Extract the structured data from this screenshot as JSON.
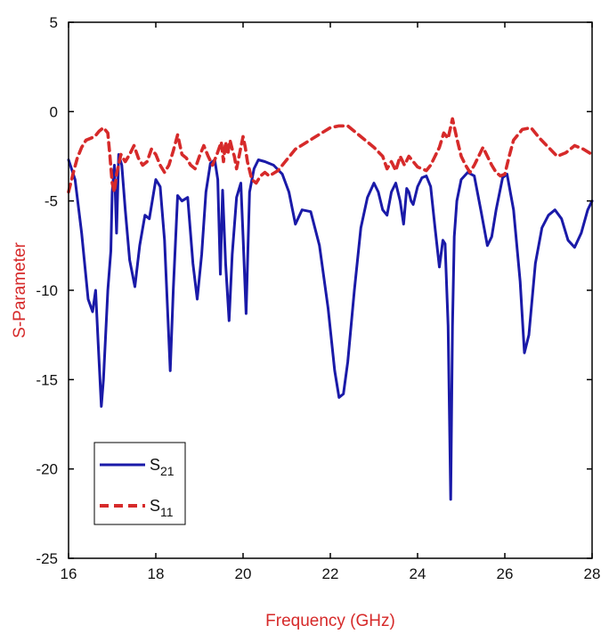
{
  "chart_data": {
    "type": "line",
    "title": "",
    "xlabel": "Frequency (GHz)",
    "ylabel": "S-Parameter",
    "xlim": [
      16,
      28
    ],
    "ylim": [
      -25,
      5
    ],
    "xticks": [
      16,
      18,
      20,
      22,
      24,
      26,
      28
    ],
    "yticks": [
      5,
      0,
      -5,
      -10,
      -15,
      -20,
      -25
    ],
    "grid": false,
    "legend": {
      "placement": "bottom-left"
    },
    "axis_label_color": "#d62a2a",
    "series": [
      {
        "name": "S21",
        "name_main": "S",
        "name_sub": "21",
        "color": "#1a1aa8",
        "style": "solid",
        "x": [
          16.0,
          16.15,
          16.3,
          16.45,
          16.55,
          16.62,
          16.68,
          16.75,
          16.8,
          16.9,
          16.97,
          17.0,
          17.05,
          17.1,
          17.15,
          17.22,
          17.3,
          17.4,
          17.52,
          17.63,
          17.75,
          17.85,
          18.0,
          18.1,
          18.2,
          18.33,
          18.4,
          18.5,
          18.6,
          18.73,
          18.85,
          18.95,
          19.05,
          19.15,
          19.25,
          19.35,
          19.42,
          19.48,
          19.53,
          19.6,
          19.68,
          19.75,
          19.85,
          19.95,
          20.0,
          20.07,
          20.15,
          20.25,
          20.35,
          20.5,
          20.7,
          20.9,
          21.05,
          21.2,
          21.35,
          21.55,
          21.75,
          21.95,
          22.1,
          22.2,
          22.3,
          22.4,
          22.55,
          22.7,
          22.85,
          23.0,
          23.1,
          23.2,
          23.3,
          23.4,
          23.5,
          23.6,
          23.68,
          23.75,
          23.8,
          23.85,
          23.9,
          24.0,
          24.1,
          24.2,
          24.3,
          24.4,
          24.5,
          24.58,
          24.63,
          24.7,
          24.76,
          24.8,
          24.84,
          24.9,
          25.0,
          25.15,
          25.3,
          25.45,
          25.6,
          25.7,
          25.8,
          25.95,
          26.05,
          26.2,
          26.35,
          26.45,
          26.55,
          26.7,
          26.85,
          27.0,
          27.15,
          27.3,
          27.45,
          27.6,
          27.75,
          27.9,
          28.0
        ],
        "values": [
          -2.7,
          -3.8,
          -6.8,
          -10.5,
          -11.2,
          -10.0,
          -13.0,
          -16.5,
          -15.0,
          -10.0,
          -7.8,
          -4.5,
          -3.0,
          -6.8,
          -2.4,
          -3.0,
          -5.5,
          -8.3,
          -9.8,
          -7.5,
          -5.8,
          -6.0,
          -3.8,
          -4.2,
          -7.2,
          -14.5,
          -10.0,
          -4.7,
          -5.0,
          -4.8,
          -8.5,
          -10.5,
          -8.0,
          -4.5,
          -2.9,
          -2.7,
          -3.8,
          -9.1,
          -4.4,
          -8.5,
          -11.7,
          -8.0,
          -4.8,
          -4.0,
          -7.0,
          -11.3,
          -4.5,
          -3.2,
          -2.7,
          -2.8,
          -3.0,
          -3.5,
          -4.5,
          -6.3,
          -5.5,
          -5.6,
          -7.5,
          -11.0,
          -14.5,
          -16.0,
          -15.8,
          -14.0,
          -10.0,
          -6.5,
          -4.8,
          -4.0,
          -4.5,
          -5.5,
          -5.8,
          -4.5,
          -4.0,
          -5.0,
          -6.3,
          -4.3,
          -4.5,
          -5.0,
          -5.2,
          -4.2,
          -3.7,
          -3.6,
          -4.2,
          -6.5,
          -8.7,
          -7.2,
          -7.4,
          -12.0,
          -21.7,
          -12.0,
          -7.0,
          -5.0,
          -3.8,
          -3.4,
          -3.6,
          -5.5,
          -7.5,
          -7.0,
          -5.5,
          -3.7,
          -3.5,
          -5.5,
          -9.5,
          -13.5,
          -12.5,
          -8.5,
          -6.5,
          -5.8,
          -5.5,
          -6.0,
          -7.2,
          -7.6,
          -6.8,
          -5.5,
          -5.0
        ]
      },
      {
        "name": "S11",
        "name_main": "S",
        "name_sub": "11",
        "color": "#d62a2a",
        "style": "dashed",
        "x": [
          16.0,
          16.1,
          16.2,
          16.3,
          16.4,
          16.5,
          16.6,
          16.7,
          16.8,
          16.9,
          16.95,
          17.0,
          17.05,
          17.1,
          17.2,
          17.3,
          17.4,
          17.5,
          17.6,
          17.7,
          17.8,
          17.9,
          18.0,
          18.1,
          18.2,
          18.3,
          18.4,
          18.5,
          18.6,
          18.7,
          18.8,
          18.9,
          19.0,
          19.1,
          19.2,
          19.3,
          19.4,
          19.5,
          19.55,
          19.6,
          19.65,
          19.7,
          19.75,
          19.8,
          19.85,
          19.9,
          19.95,
          20.0,
          20.05,
          20.1,
          20.2,
          20.3,
          20.4,
          20.5,
          20.6,
          20.8,
          21.0,
          21.2,
          21.4,
          21.6,
          21.8,
          22.0,
          22.2,
          22.4,
          22.6,
          22.8,
          23.0,
          23.2,
          23.3,
          23.4,
          23.5,
          23.6,
          23.7,
          23.8,
          23.9,
          24.0,
          24.1,
          24.2,
          24.3,
          24.4,
          24.5,
          24.6,
          24.7,
          24.8,
          24.9,
          25.0,
          25.1,
          25.2,
          25.3,
          25.4,
          25.5,
          25.6,
          25.7,
          25.8,
          25.9,
          26.0,
          26.1,
          26.2,
          26.3,
          26.4,
          26.6,
          26.8,
          27.0,
          27.2,
          27.4,
          27.6,
          27.8,
          28.0
        ],
        "values": [
          -4.5,
          -3.5,
          -2.6,
          -2.0,
          -1.6,
          -1.5,
          -1.4,
          -1.1,
          -0.9,
          -1.2,
          -2.5,
          -4.0,
          -4.5,
          -3.5,
          -2.4,
          -2.8,
          -2.4,
          -1.9,
          -2.6,
          -3.0,
          -2.8,
          -2.1,
          -2.4,
          -3.0,
          -3.4,
          -3.0,
          -2.2,
          -1.3,
          -2.4,
          -2.6,
          -3.0,
          -3.2,
          -2.5,
          -1.9,
          -2.5,
          -3.0,
          -2.4,
          -1.7,
          -2.8,
          -1.7,
          -2.4,
          -1.6,
          -2.1,
          -2.5,
          -3.2,
          -2.6,
          -2.0,
          -1.4,
          -2.0,
          -2.8,
          -3.8,
          -4.0,
          -3.6,
          -3.4,
          -3.6,
          -3.3,
          -2.7,
          -2.1,
          -1.8,
          -1.5,
          -1.2,
          -0.9,
          -0.8,
          -0.8,
          -1.2,
          -1.6,
          -2.0,
          -2.5,
          -3.2,
          -2.8,
          -3.3,
          -2.5,
          -3.0,
          -2.5,
          -2.8,
          -3.1,
          -3.2,
          -3.3,
          -3.0,
          -2.5,
          -2.0,
          -1.2,
          -1.5,
          -0.4,
          -1.5,
          -2.5,
          -3.0,
          -3.4,
          -3.0,
          -2.5,
          -2.0,
          -2.5,
          -3.0,
          -3.4,
          -3.6,
          -3.5,
          -2.5,
          -1.6,
          -1.3,
          -1.0,
          -0.9,
          -1.5,
          -2.0,
          -2.5,
          -2.3,
          -1.9,
          -2.1,
          -2.4
        ]
      }
    ]
  }
}
